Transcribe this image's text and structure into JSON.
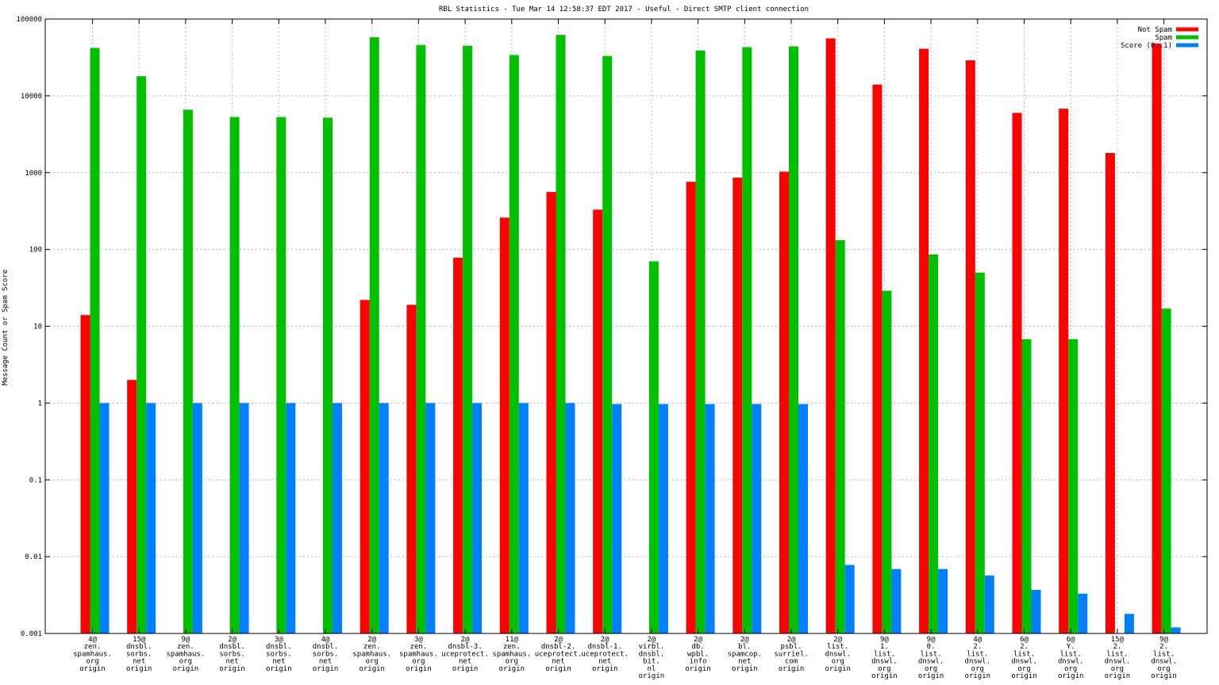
{
  "chart_data": {
    "type": "bar",
    "title": "RBL Statistics - Tue Mar 14 12:58:37 EDT 2017 - Useful - Direct SMTP client connection",
    "ylabel": "Message Count or Spam Score",
    "xlabel": "",
    "yscale": "log",
    "ylim": [
      0.001,
      100000
    ],
    "y_ticks": [
      {
        "value": 0.001,
        "label": "0.001"
      },
      {
        "value": 0.01,
        "label": "0.01"
      },
      {
        "value": 0.1,
        "label": "0.1"
      },
      {
        "value": 1,
        "label": "1"
      },
      {
        "value": 10,
        "label": "10"
      },
      {
        "value": 100,
        "label": "100"
      },
      {
        "value": 1000,
        "label": "1000"
      },
      {
        "value": 10000,
        "label": "10000"
      },
      {
        "value": 100000,
        "label": "100000"
      }
    ],
    "grid": true,
    "legend_position": "top-right",
    "categories": [
      [
        "4@",
        "zen.",
        "spamhaus.",
        "org",
        "origin"
      ],
      [
        "15@",
        "dnsbl.",
        "sorbs.",
        "net",
        "origin"
      ],
      [
        "9@",
        "zen.",
        "spamhaus.",
        "org",
        "origin"
      ],
      [
        "2@",
        "dnsbl.",
        "sorbs.",
        "net",
        "origin"
      ],
      [
        "3@",
        "dnsbl.",
        "sorbs.",
        "net",
        "origin"
      ],
      [
        "4@",
        "dnsbl.",
        "sorbs.",
        "net",
        "origin"
      ],
      [
        "2@",
        "zen.",
        "spamhaus.",
        "org",
        "origin"
      ],
      [
        "3@",
        "zen.",
        "spamhaus.",
        "org",
        "origin"
      ],
      [
        "2@",
        "dnsbl-3.",
        "uceprotect.",
        "net",
        "origin"
      ],
      [
        "11@",
        "zen.",
        "spamhaus.",
        "org",
        "origin"
      ],
      [
        "2@",
        "dnsbl-2.",
        "uceprotect.",
        "net",
        "origin"
      ],
      [
        "2@",
        "dnsbl-1.",
        "uceprotect.",
        "net",
        "origin"
      ],
      [
        "2@",
        "virbl.",
        "dnsbl.",
        "bit.",
        "nl",
        "origin"
      ],
      [
        "2@",
        "db.",
        "wpbl.",
        "info",
        "origin"
      ],
      [
        "2@",
        "bl.",
        "spamcop.",
        "net",
        "origin"
      ],
      [
        "2@",
        "psbl.",
        "surriel.",
        "com",
        "origin"
      ],
      [
        "2@",
        "list.",
        "dnswl.",
        "org",
        "origin"
      ],
      [
        "9@",
        "1.",
        "list.",
        "dnswl.",
        "org",
        "origin"
      ],
      [
        "9@",
        "0.",
        "list.",
        "dnswl.",
        "org",
        "origin"
      ],
      [
        "4@",
        "2.",
        "list.",
        "dnswl.",
        "org",
        "origin"
      ],
      [
        "6@",
        "2.",
        "list.",
        "dnswl.",
        "org",
        "origin"
      ],
      [
        "6@",
        "Y.",
        "list.",
        "dnswl.",
        "org",
        "origin"
      ],
      [
        "15@",
        "2.",
        "list.",
        "dnswl.",
        "org",
        "origin"
      ],
      [
        "9@",
        "2.",
        "list.",
        "dnswl.",
        "org",
        "origin"
      ]
    ],
    "series": [
      {
        "name": "Not Spam",
        "color": "#ff0000",
        "values": [
          14,
          2,
          null,
          null,
          null,
          null,
          22,
          19,
          78,
          260,
          560,
          330,
          null,
          760,
          860,
          1030,
          56000,
          14000,
          41000,
          29000,
          6000,
          6800,
          1800,
          48000
        ]
      },
      {
        "name": "Spam",
        "color": "#00c000",
        "values": [
          42000,
          18000,
          6600,
          5300,
          5300,
          5200,
          58000,
          46000,
          45000,
          34000,
          62000,
          33000,
          70,
          39000,
          43000,
          44000,
          132,
          29,
          86,
          50,
          6.8,
          6.8,
          null,
          17
        ]
      },
      {
        "name": "Score (0..1)",
        "color": "#0080ff",
        "values": [
          1,
          1,
          1,
          1,
          1,
          1,
          1,
          1,
          1,
          1,
          1,
          0.97,
          0.97,
          0.97,
          0.97,
          0.97,
          0.0078,
          0.0069,
          0.0069,
          0.0057,
          0.0037,
          0.0033,
          0.0018,
          0.0012
        ]
      }
    ]
  }
}
